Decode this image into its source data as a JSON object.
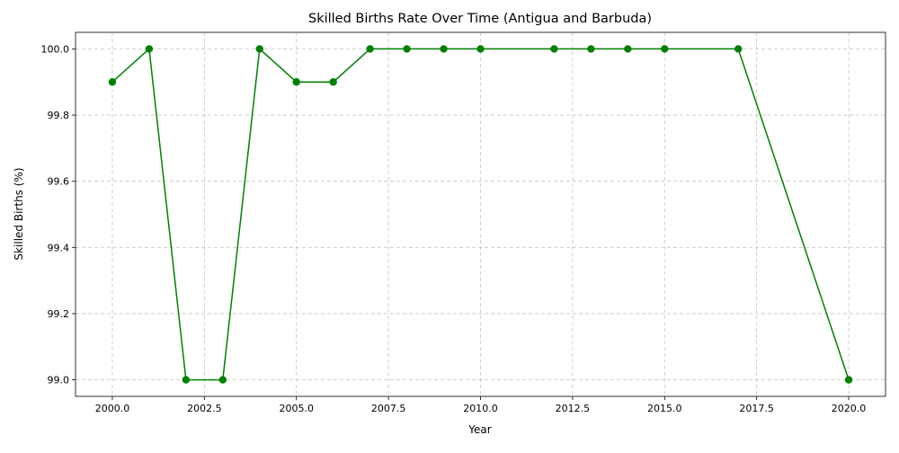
{
  "chart_data": {
    "type": "line",
    "title": "Skilled Births Rate Over Time (Antigua and Barbuda)",
    "xlabel": "Year",
    "ylabel": "Skilled Births (%)",
    "x": [
      2000,
      2001,
      2002,
      2003,
      2004,
      2005,
      2006,
      2007,
      2008,
      2009,
      2010,
      2012,
      2013,
      2014,
      2015,
      2017,
      2020
    ],
    "series": [
      {
        "values": [
          99.9,
          100.0,
          99.0,
          99.0,
          100.0,
          99.9,
          99.9,
          100.0,
          100.0,
          100.0,
          100.0,
          100.0,
          100.0,
          100.0,
          100.0,
          100.0,
          99.0
        ],
        "color": "#008000",
        "marker": "circle"
      }
    ],
    "xlim": [
      1999.0,
      2021.0
    ],
    "ylim": [
      98.95,
      100.05
    ],
    "xticks": [
      2000.0,
      2002.5,
      2005.0,
      2007.5,
      2010.0,
      2012.5,
      2015.0,
      2017.5,
      2020.0
    ],
    "xtick_labels": [
      "2000.0",
      "2002.5",
      "2005.0",
      "2007.5",
      "2010.0",
      "2012.5",
      "2015.0",
      "2017.5",
      "2020.0"
    ],
    "yticks": [
      99.0,
      99.2,
      99.4,
      99.6,
      99.8,
      100.0
    ],
    "ytick_labels": [
      "99.0",
      "99.2",
      "99.4",
      "99.6",
      "99.8",
      "100.0"
    ],
    "grid": true
  }
}
